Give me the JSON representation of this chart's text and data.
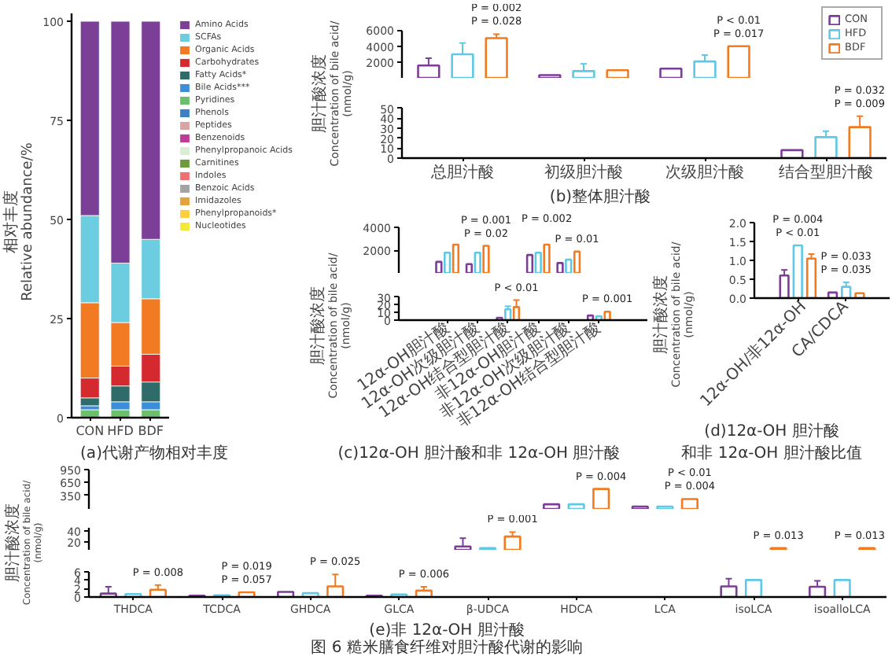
{
  "chart_data": [
    {
      "type": "bar",
      "stacked": true,
      "title": "(a)代谢产物相对丰度",
      "ylabel": "相对丰度\nRelative abundance/%",
      "categories": [
        "CON",
        "HFD",
        "BDF"
      ],
      "ylim": [
        0,
        102
      ],
      "yticks": [
        0,
        25,
        50,
        75,
        100
      ],
      "legend": "right",
      "series": [
        {
          "name": "Nucleotides",
          "color": "#f2e93a",
          "values": [
            null,
            null,
            null
          ]
        },
        {
          "name": "Phenylpropanoids*",
          "color": "#fdcf3f",
          "values": [
            null,
            null,
            null
          ]
        },
        {
          "name": "Imidazoles",
          "color": "#e3a23c",
          "values": [
            null,
            null,
            null
          ]
        },
        {
          "name": "Benzoic Acids",
          "color": "#a3a3a3",
          "values": [
            null,
            null,
            null
          ]
        },
        {
          "name": "Indoles",
          "color": "#ef7070",
          "values": [
            null,
            null,
            null
          ]
        },
        {
          "name": "Carnitines",
          "color": "#6e9c3c",
          "values": [
            null,
            null,
            null
          ]
        },
        {
          "name": "Phenylpropanoic Acids",
          "color": "#d8edd2",
          "values": [
            null,
            null,
            null
          ]
        },
        {
          "name": "Benzenoids",
          "color": "#c23a98",
          "values": [
            null,
            null,
            null
          ]
        },
        {
          "name": "Peptides",
          "color": "#d8a4a4",
          "values": [
            null,
            null,
            null
          ]
        },
        {
          "name": "Phenols",
          "color": "#3d7fc6",
          "values": [
            null,
            null,
            null
          ]
        },
        {
          "name": "Pyridines",
          "color": "#6cc06c",
          "values": [
            2,
            2,
            2
          ]
        },
        {
          "name": "Bile Acids***",
          "color": "#3b8fd8",
          "values": [
            1,
            2,
            2
          ]
        },
        {
          "name": "Fatty Acids*",
          "color": "#2e6b69",
          "values": [
            2,
            4,
            5
          ]
        },
        {
          "name": "Carbohydrates",
          "color": "#d42a2f",
          "values": [
            5,
            5,
            7
          ]
        },
        {
          "name": "Organic Acids",
          "color": "#f27a22",
          "values": [
            19,
            11,
            14
          ]
        },
        {
          "name": "SCFAs",
          "color": "#6ccde0",
          "values": [
            22,
            15,
            15
          ]
        },
        {
          "name": "Amino Acids",
          "color": "#7b3f98",
          "values": [
            49,
            61,
            55
          ]
        }
      ]
    },
    {
      "type": "bar",
      "categories": [
        "总胆汁酸",
        "初级胆汁酸",
        "次级胆汁酸",
        "结合型胆汁酸"
      ],
      "ylim": [
        50,
        6000
      ],
      "yticks": [
        2000,
        4000,
        6000
      ],
      "tick_labels": "y",
      "legend": "top right",
      "series": [
        {
          "name": "CON",
          "color": "#7d3c98",
          "values": [
            1600,
            400,
            1200,
            null
          ],
          "errors": [
            [
              1600,
              2500
            ],
            null,
            null,
            null
          ]
        },
        {
          "name": "HFD",
          "color": "#5ec8e5",
          "values": [
            3000,
            900,
            2100,
            null
          ],
          "errors": [
            [
              3000,
              4400
            ],
            [
              900,
              1800
            ],
            [
              2100,
              2900
            ],
            null
          ]
        },
        {
          "name": "BDF",
          "color": "#f47a20",
          "values": [
            5000,
            1000,
            4000,
            null
          ],
          "errors": [
            [
              5000,
              5500
            ],
            null,
            null,
            null
          ]
        }
      ],
      "annotations": [
        "P = 0.028",
        "P = 0.002",
        "P = 0.017",
        "P < 0.01"
      ]
    },
    {
      "type": "bar",
      "title": "(b)整体胆汁酸",
      "ylabel": "胆汁酸浓度\nConcentration of bile acid/\n(nmol/g)",
      "categories": [
        "总胆汁酸",
        "初级胆汁酸",
        "次级胆汁酸",
        "结合型胆汁酸"
      ],
      "ylim": [
        0,
        50
      ],
      "yticks": [
        0,
        10,
        20,
        30,
        40,
        50
      ],
      "series": [
        {
          "color": "#7d3c98",
          "values": [
            null,
            null,
            null,
            8
          ]
        },
        {
          "color": "#5ec8e5",
          "values": [
            null,
            null,
            null,
            21
          ],
          "errors": [
            null,
            null,
            null,
            [
              21,
              27
            ]
          ]
        },
        {
          "color": "#f47a20",
          "values": [
            null,
            null,
            null,
            31
          ],
          "errors": [
            null,
            null,
            null,
            [
              31,
              42
            ]
          ]
        }
      ],
      "annotations": [
        "P = 0.009",
        "P = 0.032"
      ]
    },
    {
      "type": "bar",
      "categories": [
        "12α-OH胆汁酸",
        "12α-OH次级胆汁酸",
        "12α-OH结合型胆汁酸",
        "非12α-OH胆汁酸",
        "非12α-OH次级胆汁酸",
        "非12α-OH结合型胆汁酸"
      ],
      "ylim": [
        30,
        4000
      ],
      "yticks": [
        2000,
        4000
      ],
      "tick_labels": "y",
      "series": [
        {
          "color": "#7d3c98",
          "values": [
            1000,
            800,
            null,
            1600,
            900,
            null
          ]
        },
        {
          "color": "#5ec8e5",
          "values": [
            1800,
            1800,
            null,
            1800,
            1200,
            null
          ]
        },
        {
          "color": "#f47a20",
          "values": [
            2500,
            2400,
            null,
            2500,
            1900,
            null
          ]
        }
      ],
      "annotations": [
        "P = 0.02",
        "P = 0.001",
        "P = 0.002",
        "P = 0.01"
      ]
    },
    {
      "type": "bar",
      "title": "(c)12α-OH 胆汁酸和非 12α-OH 胆汁酸",
      "ylabel": "胆汁酸浓度\nConcentration of bile acid/\n(nmol/g)",
      "categories": [
        "12α-OH胆汁酸",
        "12α-OH次级胆汁酸",
        "12α-OH结合型胆汁酸",
        "非12α-OH胆汁酸",
        "非12α-OH次级胆汁酸",
        "非12α-OH结合型胆汁酸"
      ],
      "ylim": [
        0,
        30
      ],
      "yticks": [
        0,
        10,
        20,
        30
      ],
      "series": [
        {
          "color": "#7d3c98",
          "values": [
            null,
            null,
            3,
            null,
            null,
            6
          ]
        },
        {
          "color": "#5ec8e5",
          "values": [
            null,
            null,
            14,
            null,
            null,
            5
          ],
          "errors": [
            null,
            null,
            [
              14,
              18
            ],
            null,
            null,
            null
          ]
        },
        {
          "color": "#f47a20",
          "values": [
            null,
            null,
            17,
            null,
            null,
            11
          ],
          "errors": [
            null,
            null,
            [
              17,
              26
            ],
            null,
            null,
            null
          ]
        }
      ],
      "annotations": [
        "P < 0.01",
        "P = 0.001"
      ]
    },
    {
      "type": "bar",
      "title": "(d)12α-OH 胆汁酸和非 12α-OH 胆汁酸比值",
      "ylabel": "胆汁酸浓度\nConcentration of bile acid/\n(nmol/g)",
      "categories": [
        "12α-OH/非12α-OH",
        "CA/CDCA"
      ],
      "ylim": [
        0,
        2
      ],
      "yticks": [
        {
          "value": 0,
          "label": "0.0"
        },
        0.5,
        {
          "value": 1,
          "label": "1.0"
        },
        1.5,
        {
          "value": 2,
          "label": "2.0"
        }
      ],
      "series": [
        {
          "color": "#7d3c98",
          "values": [
            0.6,
            0.15
          ],
          "errors": [
            [
              0.6,
              0.75
            ],
            null
          ]
        },
        {
          "color": "#5ec8e5",
          "values": [
            1.4,
            0.3
          ],
          "errors": [
            null,
            [
              0.3,
              0.42
            ]
          ]
        },
        {
          "color": "#f47a20",
          "values": [
            1.05,
            0.13
          ],
          "errors": [
            [
              1.05,
              1.17
            ],
            null
          ]
        }
      ],
      "annotations": [
        "P < 0.01",
        "P = 0.004",
        "P = 0.035",
        "P = 0.033"
      ]
    },
    {
      "type": "bar",
      "categories": [
        "THDCA",
        "TCDCA",
        "GHDCA",
        "GLCA",
        "β-UDCA",
        "HDCA",
        "LCA",
        "isoLCA",
        "isoalloLCA"
      ],
      "ylim": [
        45,
        950
      ],
      "yticks": [
        350,
        650,
        950
      ],
      "tick_labels": "y",
      "series": [
        {
          "color": "#7d3c98",
          "values": [
            null,
            null,
            null,
            null,
            null,
            150,
            100,
            null,
            null
          ]
        },
        {
          "color": "#5ec8e5",
          "values": [
            null,
            null,
            null,
            null,
            null,
            150,
            100,
            null,
            null
          ]
        },
        {
          "color": "#f47a20",
          "values": [
            null,
            null,
            null,
            null,
            null,
            500,
            270,
            null,
            null
          ]
        }
      ],
      "annotations": [
        "P = 0.004",
        "P = 0.004",
        "P < 0.01"
      ]
    },
    {
      "type": "bar",
      "categories": [
        "THDCA",
        "TCDCA",
        "GHDCA",
        "GLCA",
        "β-UDCA",
        "HDCA",
        "LCA",
        "isoLCA",
        "isoalloLCA"
      ],
      "ylim": [
        6,
        45
      ],
      "yticks": [
        20,
        40
      ],
      "tick_labels": "y",
      "series": [
        {
          "color": "#7d3c98",
          "values": [
            null,
            null,
            null,
            null,
            12,
            null,
            null,
            null,
            null
          ],
          "errors": [
            null,
            null,
            null,
            null,
            [
              12,
              27
            ],
            null,
            null,
            null,
            null
          ]
        },
        {
          "color": "#5ec8e5",
          "values": [
            null,
            null,
            null,
            null,
            9,
            null,
            null,
            null,
            null
          ]
        },
        {
          "color": "#f47a20",
          "values": [
            null,
            null,
            null,
            null,
            30,
            null,
            null,
            9,
            9
          ],
          "errors": [
            null,
            null,
            null,
            null,
            [
              30,
              38
            ],
            null,
            null,
            null,
            null
          ]
        }
      ],
      "annotations": [
        "P = 0.001",
        "P = 0.013",
        "P = 0.013"
      ]
    },
    {
      "type": "bar",
      "title": "(e)非 12α-OH 胆汁酸",
      "ylabel": "胆汁酸浓度\nConcentration of bile acid/\n(nmol/g)",
      "categories": [
        "THDCA",
        "TCDCA",
        "GHDCA",
        "GLCA",
        "β-UDCA",
        "HDCA",
        "LCA",
        "isoLCA",
        "isoalloLCA"
      ],
      "ylim": [
        0,
        6
      ],
      "yticks": [
        0,
        2,
        4,
        6
      ],
      "series": [
        {
          "color": "#7d3c98",
          "values": [
            0.8,
            0.3,
            1.2,
            0.3,
            null,
            null,
            null,
            2.5,
            2.4
          ],
          "errors": [
            [
              0.8,
              2.4
            ],
            null,
            null,
            null,
            null,
            null,
            null,
            [
              2.5,
              4.3
            ],
            [
              2.4,
              3.8
            ]
          ]
        },
        {
          "color": "#5ec8e5",
          "values": [
            0.7,
            0.4,
            0.9,
            0.6,
            null,
            null,
            null,
            4.0,
            4.0
          ]
        },
        {
          "color": "#f47a20",
          "values": [
            1.7,
            1.1,
            2.5,
            1.5,
            null,
            null,
            null,
            null,
            null
          ],
          "errors": [
            [
              1.7,
              2.8
            ],
            null,
            [
              2.5,
              5.3
            ],
            [
              1.5,
              2.4
            ],
            null,
            null,
            null,
            null,
            null
          ]
        }
      ],
      "annotations": [
        "P = 0.008",
        "P = 0.057",
        "P = 0.019",
        "P = 0.025",
        "P = 0.006",
        "图 6 糙米膳食纤维对胆汁酸代谢的影响"
      ]
    }
  ]
}
